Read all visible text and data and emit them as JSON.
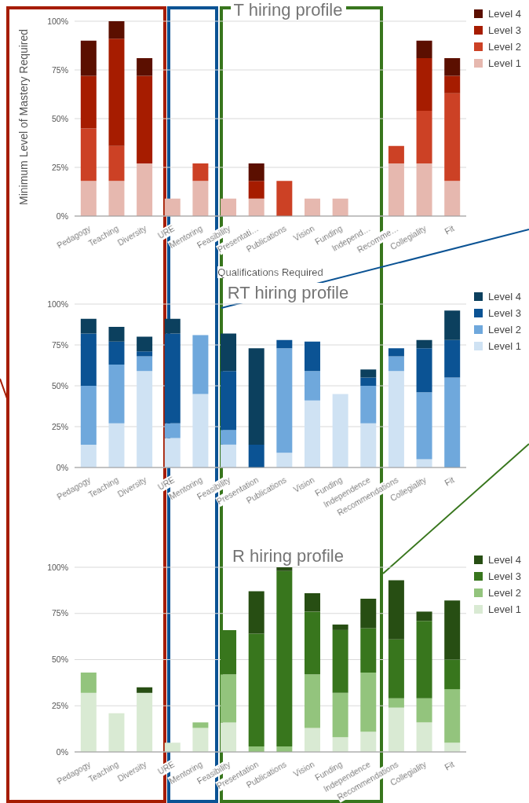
{
  "chart_data": [
    {
      "type": "bar",
      "stacked": true,
      "title": "T hiring profile",
      "xlabel": "Qualifications Required",
      "ylabel": "Minimum Level of Mastery Required",
      "categories": [
        "Pedagogy",
        "Teaching",
        "Diversity",
        "URE",
        "Mentoring",
        "Feasibility",
        "Presentati…",
        "Publications",
        "Vision",
        "Funding",
        "Independ…",
        "Recomme…",
        "Collegiality",
        "Fit"
      ],
      "series": [
        {
          "name": "Level 1",
          "color": "#e6b8af",
          "values": [
            18,
            18,
            27,
            9,
            18,
            9,
            9,
            0,
            9,
            9,
            0,
            27,
            27,
            18
          ]
        },
        {
          "name": "Level 2",
          "color": "#cc4125",
          "values": [
            27,
            18,
            0,
            0,
            9,
            0,
            0,
            18,
            0,
            0,
            0,
            9,
            27,
            45
          ]
        },
        {
          "name": "Level 3",
          "color": "#a61c00",
          "values": [
            27,
            55,
            45,
            0,
            0,
            0,
            9,
            0,
            0,
            0,
            0,
            0,
            27,
            9
          ]
        },
        {
          "name": "Level 4",
          "color": "#5b0f00",
          "values": [
            18,
            9,
            9,
            0,
            0,
            0,
            9,
            0,
            0,
            0,
            0,
            0,
            9,
            9
          ]
        }
      ],
      "ylim": [
        0,
        100
      ],
      "yticks": [
        {
          "value": 0,
          "label": "0%"
        },
        {
          "value": 25,
          "label": "25%"
        },
        {
          "value": 50,
          "label": "50%"
        },
        {
          "value": 75,
          "label": "75%"
        },
        {
          "value": 100,
          "label": "100%"
        }
      ],
      "grid": "y",
      "legend": "top right"
    },
    {
      "type": "bar",
      "stacked": true,
      "title": "RT hiring profile",
      "categories": [
        "Pedagogy",
        "Teaching",
        "Diversity",
        "URE",
        "Mentoring",
        "Feasibility",
        "Presentation",
        "Publications",
        "Vision",
        "Funding",
        "Independence",
        "Recommendations",
        "Collegiality",
        "Fit"
      ],
      "series": [
        {
          "name": "Level 1",
          "color": "#cfe2f3",
          "values": [
            14,
            27,
            59,
            18,
            45,
            14,
            0,
            9,
            41,
            45,
            27,
            59,
            5,
            0
          ]
        },
        {
          "name": "Level 2",
          "color": "#6fa8dc",
          "values": [
            36,
            36,
            9,
            9,
            36,
            9,
            0,
            64,
            18,
            0,
            23,
            9,
            41,
            55
          ]
        },
        {
          "name": "Level 3",
          "color": "#0b5394",
          "values": [
            32,
            14,
            3,
            55,
            0,
            36,
            14,
            5,
            18,
            0,
            5,
            5,
            27,
            23
          ]
        },
        {
          "name": "Level 4",
          "color": "#0c405e",
          "values": [
            9,
            9,
            9,
            9,
            0,
            23,
            59,
            0,
            0,
            0,
            5,
            0,
            5,
            18
          ]
        }
      ],
      "ylim": [
        0,
        100
      ],
      "yticks": [
        {
          "value": 0,
          "label": "0%"
        },
        {
          "value": 25,
          "label": "25%"
        },
        {
          "value": 50,
          "label": "50%"
        },
        {
          "value": 75,
          "label": "75%"
        },
        {
          "value": 100,
          "label": "100%"
        }
      ],
      "grid": "y",
      "legend": "top right"
    },
    {
      "type": "bar",
      "stacked": true,
      "title": "R hiring profile",
      "categories": [
        "Pedagogy",
        "Teaching",
        "Diversity",
        "URE",
        "Mentoring",
        "Feasibility",
        "Presentation",
        "Publications",
        "Vision",
        "Funding",
        "Independence",
        "Recommendations",
        "Collegiality",
        "Fit"
      ],
      "series": [
        {
          "name": "Level 1",
          "color": "#d9ead3",
          "values": [
            32,
            21,
            32,
            5,
            13,
            16,
            0,
            0,
            13,
            8,
            11,
            24,
            16,
            5
          ]
        },
        {
          "name": "Level 2",
          "color": "#93c47d",
          "values": [
            11,
            0,
            0,
            0,
            3,
            26,
            3,
            3,
            29,
            24,
            32,
            5,
            13,
            29
          ]
        },
        {
          "name": "Level 3",
          "color": "#38761d",
          "values": [
            0,
            0,
            0,
            0,
            0,
            24,
            61,
            95,
            34,
            34,
            24,
            32,
            42,
            16
          ]
        },
        {
          "name": "Level 4",
          "color": "#274e13",
          "values": [
            0,
            0,
            3,
            0,
            0,
            0,
            23,
            2,
            10,
            3,
            16,
            32,
            5,
            32
          ]
        }
      ],
      "ylim": [
        0,
        100
      ],
      "yticks": [
        {
          "value": 0,
          "label": "0%"
        },
        {
          "value": 25,
          "label": "25%"
        },
        {
          "value": 50,
          "label": "50%"
        },
        {
          "value": 75,
          "label": "75%"
        },
        {
          "value": 100,
          "label": "100%"
        }
      ],
      "grid": "y",
      "legend": "top right"
    }
  ]
}
